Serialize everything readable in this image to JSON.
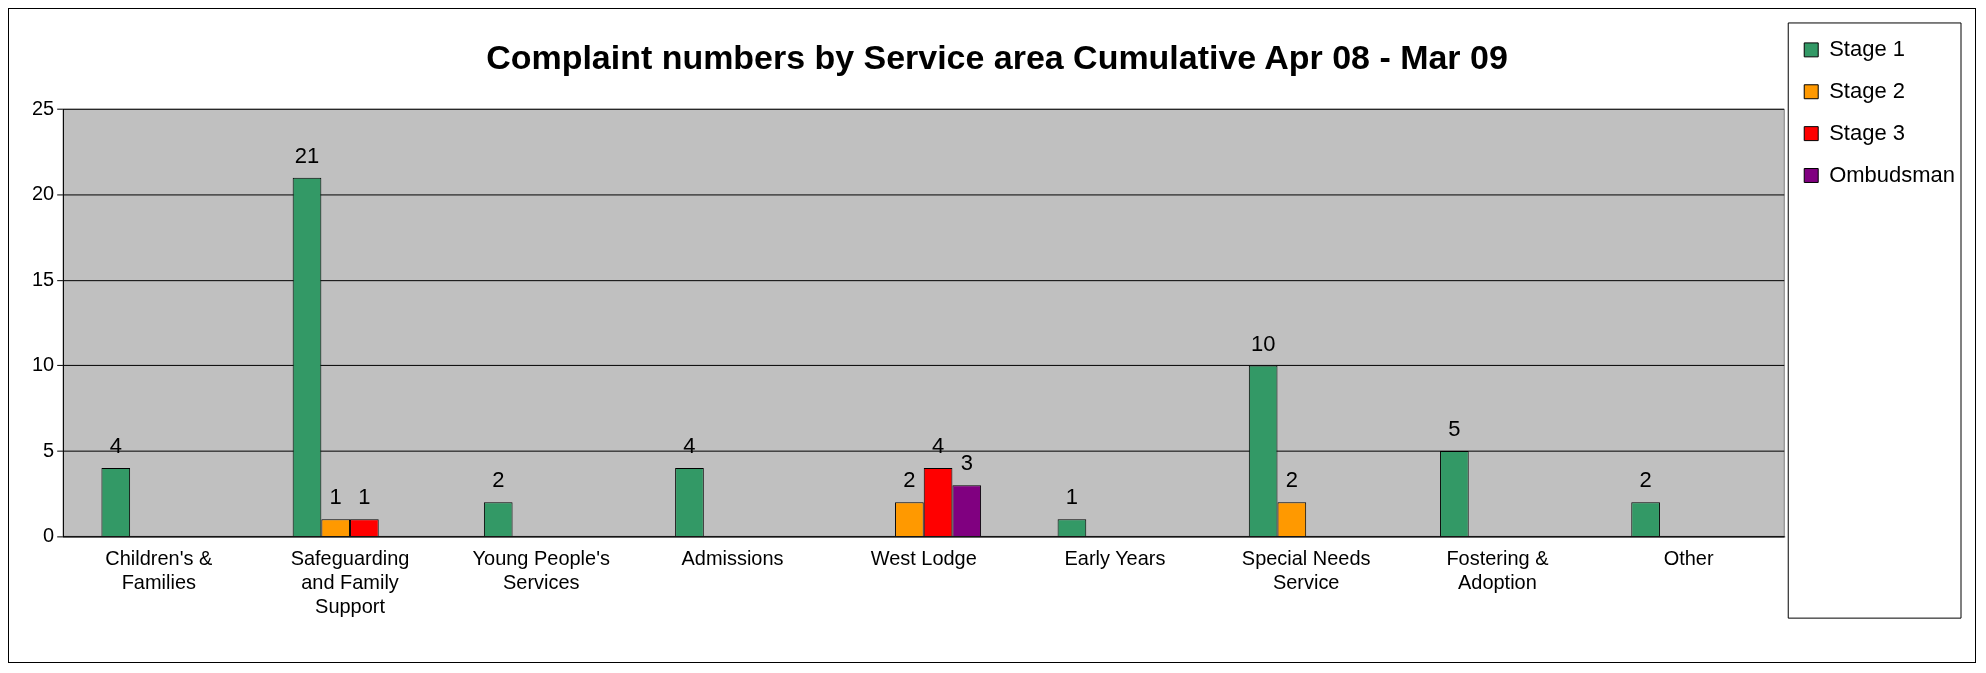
{
  "chart_data": {
    "type": "bar",
    "title": "Complaint numbers by Service area Cumulative Apr 08 - Mar 09",
    "categories": [
      "Children's & Families",
      "Safeguarding and Family Support",
      "Young People's Services",
      "Admissions",
      "West Lodge",
      "Early Years",
      "Special Needs Service",
      "Fostering & Adoption",
      "Other"
    ],
    "series": [
      {
        "name": "Stage 1",
        "color": "#339966",
        "values": [
          4,
          21,
          2,
          4,
          null,
          1,
          10,
          5,
          2
        ]
      },
      {
        "name": "Stage 2",
        "color": "#ff9900",
        "values": [
          null,
          1,
          null,
          null,
          2,
          null,
          2,
          null,
          null
        ]
      },
      {
        "name": "Stage 3",
        "color": "#ff0000",
        "values": [
          null,
          1,
          null,
          null,
          4,
          null,
          null,
          null,
          null
        ]
      },
      {
        "name": "Ombudsman",
        "color": "#800080",
        "values": [
          null,
          null,
          null,
          null,
          3,
          null,
          null,
          null,
          null
        ]
      }
    ],
    "ylim": [
      0,
      25
    ],
    "yticks": [
      0,
      5,
      10,
      15,
      20,
      25
    ],
    "grid": "y",
    "legend": "right",
    "data_labels": true
  }
}
